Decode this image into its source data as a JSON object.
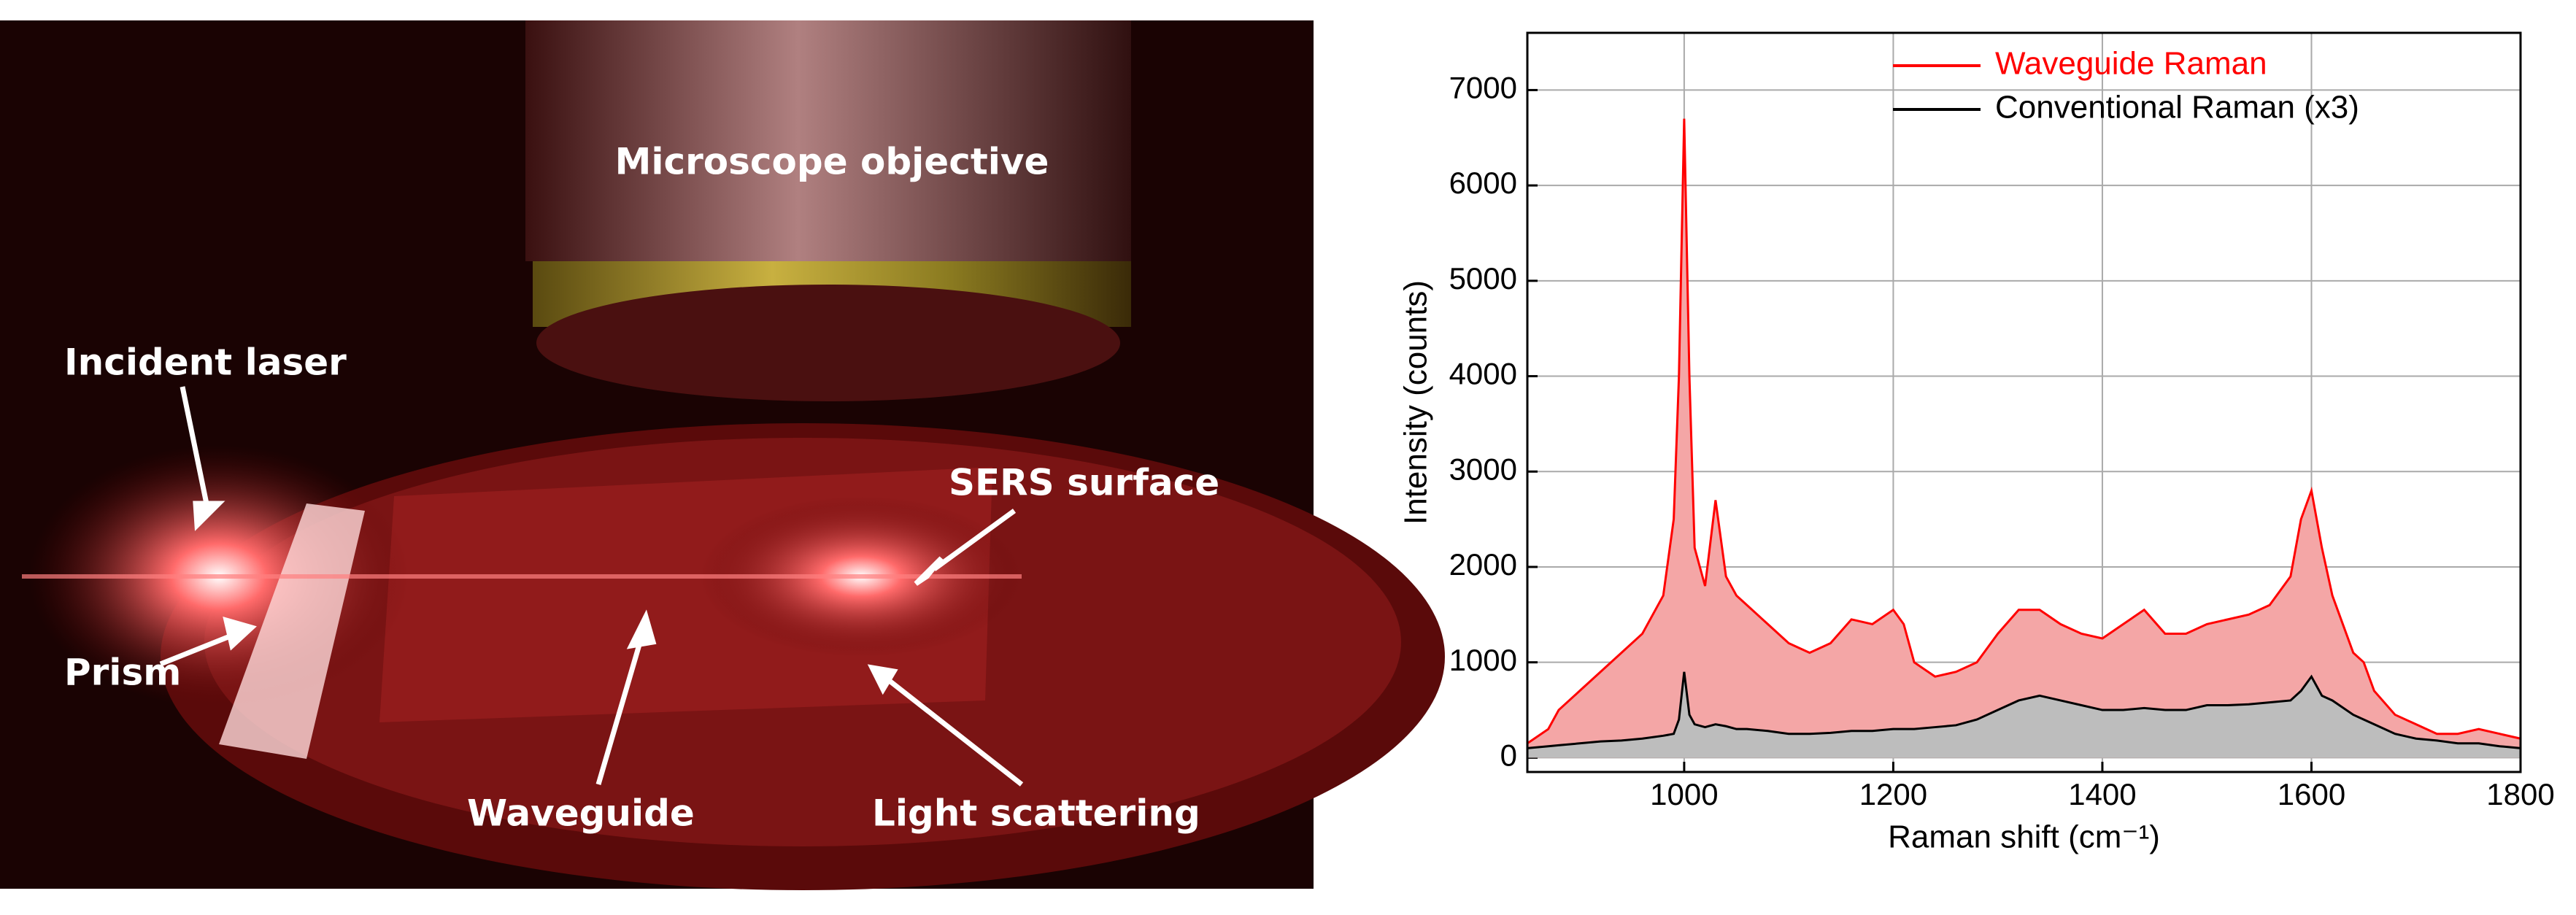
{
  "photo": {
    "labels": [
      "Microscope objective",
      "Incident laser",
      "Prism",
      "SERS surface",
      "Waveguide",
      "Light scattering"
    ]
  },
  "chart_data": {
    "type": "line",
    "x": [
      850,
      870,
      880,
      900,
      920,
      940,
      960,
      980,
      990,
      995,
      1000,
      1005,
      1010,
      1020,
      1030,
      1040,
      1050,
      1060,
      1080,
      1100,
      1120,
      1140,
      1160,
      1180,
      1200,
      1210,
      1220,
      1240,
      1260,
      1280,
      1300,
      1320,
      1340,
      1360,
      1380,
      1400,
      1420,
      1440,
      1460,
      1480,
      1500,
      1520,
      1540,
      1560,
      1580,
      1590,
      1600,
      1610,
      1620,
      1640,
      1650,
      1660,
      1680,
      1700,
      1720,
      1740,
      1760,
      1780,
      1800
    ],
    "series": [
      {
        "name": "Waveguide Raman",
        "color": "#ff0000",
        "fill": "#f4a6a6",
        "values": [
          150,
          300,
          500,
          700,
          900,
          1100,
          1300,
          1700,
          2500,
          4000,
          6700,
          4000,
          2200,
          1800,
          2700,
          1900,
          1700,
          1600,
          1400,
          1200,
          1100,
          1200,
          1450,
          1400,
          1550,
          1400,
          1000,
          850,
          900,
          1000,
          1300,
          1550,
          1550,
          1400,
          1300,
          1250,
          1400,
          1550,
          1300,
          1300,
          1400,
          1450,
          1500,
          1600,
          1900,
          2500,
          2800,
          2200,
          1700,
          1100,
          1000,
          700,
          450,
          350,
          250,
          250,
          300,
          250,
          200
        ]
      },
      {
        "name": "Conventional Raman (x3)",
        "color": "#000000",
        "fill": "#bdbdbd",
        "values": [
          100,
          120,
          130,
          150,
          170,
          180,
          200,
          230,
          250,
          400,
          900,
          450,
          350,
          320,
          350,
          330,
          300,
          300,
          280,
          250,
          250,
          260,
          280,
          280,
          300,
          300,
          300,
          320,
          340,
          400,
          500,
          600,
          650,
          600,
          550,
          500,
          500,
          520,
          500,
          500,
          550,
          550,
          560,
          580,
          600,
          700,
          850,
          650,
          600,
          450,
          400,
          350,
          250,
          200,
          180,
          150,
          150,
          120,
          100
        ]
      }
    ],
    "x_label": "Raman shift (cm⁻¹)",
    "y_label": "Intensity (counts)",
    "xlim": [
      850,
      1800
    ],
    "xticks": [
      1000,
      1200,
      1400,
      1600,
      1800
    ],
    "ylim": [
      -150,
      7600
    ],
    "yticks": [
      0,
      1000,
      2000,
      3000,
      4000,
      5000,
      6000,
      7000
    ],
    "grid": true,
    "legend": "upper-right"
  }
}
